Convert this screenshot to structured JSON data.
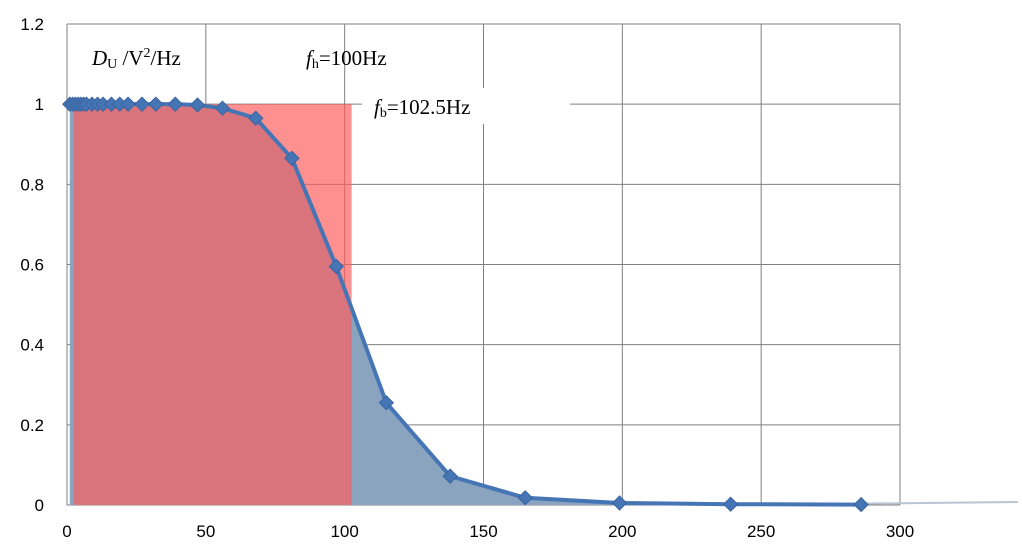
{
  "chart_data": {
    "type": "line",
    "title": "",
    "xlabel": "",
    "ylabel": "",
    "xlim": [
      0,
      300
    ],
    "ylim": [
      0,
      1.2
    ],
    "x_ticks": [
      "0",
      "50",
      "100",
      "150",
      "200",
      "250",
      "300"
    ],
    "y_ticks": [
      "0",
      "0.2",
      "0.4",
      "0.6",
      "0.8",
      "1",
      "1.2"
    ],
    "grid": true,
    "colors": {
      "series": "#4575b4",
      "area": "#8aa4c0",
      "ideal_band": "#ff5c5c",
      "overlap": "#c0505a"
    },
    "ideal_band": {
      "x_start": 2.5,
      "x_end": 102.5,
      "level": 1
    },
    "series": [
      {
        "values": [
          [
            1,
            1.0
          ],
          [
            2,
            1.0
          ],
          [
            3,
            1.0
          ],
          [
            4,
            1.0
          ],
          [
            5,
            1.0
          ],
          [
            6,
            1.0
          ],
          [
            7,
            1.0
          ],
          [
            9,
            1.0
          ],
          [
            11,
            1.0
          ],
          [
            13,
            1.0
          ],
          [
            16,
            1.0
          ],
          [
            19,
            1.0
          ],
          [
            22,
            1.0
          ],
          [
            27,
            1.0
          ],
          [
            32,
            1.0
          ],
          [
            39,
            1.0
          ],
          [
            47,
            0.998
          ],
          [
            56,
            0.99
          ],
          [
            68,
            0.965
          ],
          [
            81,
            0.865
          ],
          [
            97,
            0.595
          ],
          [
            115,
            0.255
          ],
          [
            138,
            0.072
          ],
          [
            165,
            0.018
          ],
          [
            199,
            0.005
          ],
          [
            239,
            0.002
          ],
          [
            286,
            0.001
          ]
        ]
      }
    ],
    "annotations": {
      "density": {
        "main": "D",
        "sub": "U",
        "rest": " /V",
        "sup": "2",
        "tail": "/Hz"
      },
      "fh": {
        "main": "f",
        "sub": "h",
        "rest": "=100Hz"
      },
      "fb": {
        "main": "f",
        "sub": "b",
        "rest": "=102.5Hz"
      }
    }
  }
}
